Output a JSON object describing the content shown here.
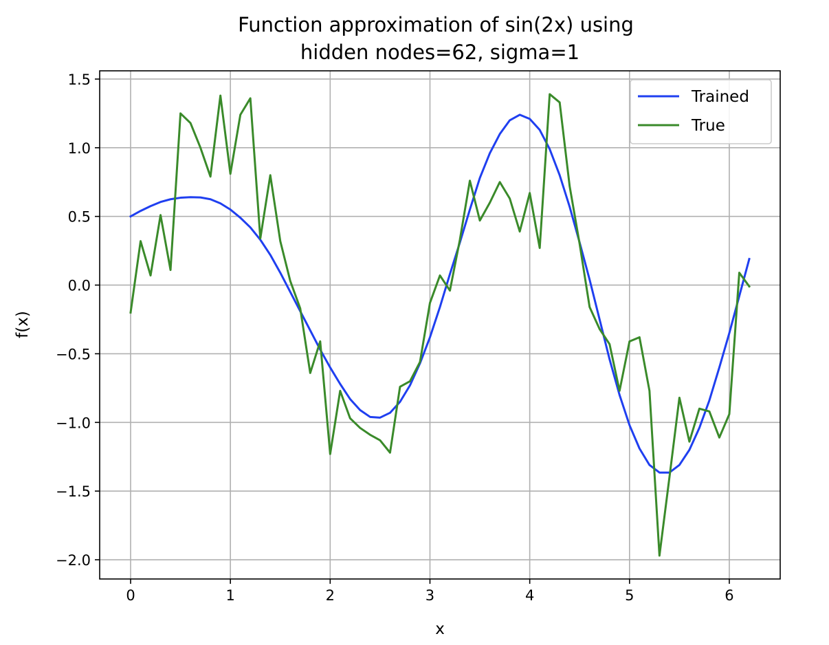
{
  "chart_data": {
    "type": "line",
    "title": "Function approximation of sin(2x) using",
    "subtitle": "hidden nodes=62, sigma=1",
    "xlabel": "x",
    "ylabel": "f(x)",
    "xlim": [
      -0.31,
      6.51
    ],
    "ylim": [
      -2.14,
      1.56
    ],
    "xticks": [
      0,
      1,
      2,
      3,
      4,
      5,
      6
    ],
    "xtick_labels": [
      "0",
      "1",
      "2",
      "3",
      "4",
      "5",
      "6"
    ],
    "yticks": [
      1.5,
      1.0,
      0.5,
      0.0,
      -0.5,
      -1.0,
      -1.5,
      -2.0
    ],
    "ytick_labels": [
      "1.5",
      "1.0",
      "0.5",
      "0.0",
      "−0.5",
      "−1.0",
      "−1.5",
      "−2.0"
    ],
    "grid": true,
    "legend_position": "upper right",
    "x": [
      0.0,
      0.1,
      0.2,
      0.3,
      0.4,
      0.5,
      0.6,
      0.7,
      0.8,
      0.9,
      1.0,
      1.1,
      1.2,
      1.3,
      1.4,
      1.5,
      1.6,
      1.7,
      1.8,
      1.9,
      2.0,
      2.1,
      2.2,
      2.3,
      2.4,
      2.5,
      2.6,
      2.7,
      2.8,
      2.9,
      3.0,
      3.1,
      3.2,
      3.3,
      3.4,
      3.5,
      3.6,
      3.7,
      3.8,
      3.9,
      4.0,
      4.1,
      4.2,
      4.3,
      4.4,
      4.5,
      4.6,
      4.7,
      4.8,
      4.9,
      5.0,
      5.1,
      5.2,
      5.3,
      5.4,
      5.5,
      5.6,
      5.7,
      5.8,
      5.9,
      6.0,
      6.1,
      6.2
    ],
    "series": [
      {
        "name": "Trained",
        "color": "#1f3ff0",
        "values": [
          0.5,
          0.54,
          0.575,
          0.605,
          0.625,
          0.636,
          0.64,
          0.638,
          0.625,
          0.595,
          0.55,
          0.49,
          0.42,
          0.33,
          0.22,
          0.09,
          -0.05,
          -0.19,
          -0.33,
          -0.47,
          -0.6,
          -0.72,
          -0.83,
          -0.91,
          -0.96,
          -0.965,
          -0.93,
          -0.85,
          -0.73,
          -0.57,
          -0.38,
          -0.16,
          0.08,
          0.31,
          0.55,
          0.78,
          0.96,
          1.1,
          1.2,
          1.24,
          1.21,
          1.13,
          0.99,
          0.8,
          0.57,
          0.31,
          0.04,
          -0.25,
          -0.54,
          -0.8,
          -1.02,
          -1.19,
          -1.31,
          -1.365,
          -1.365,
          -1.31,
          -1.2,
          -1.04,
          -0.84,
          -0.6,
          -0.35,
          -0.08,
          0.19
        ]
      },
      {
        "name": "True",
        "color": "#3a8a2a",
        "values": [
          -0.2,
          0.32,
          0.07,
          0.51,
          0.11,
          1.25,
          1.18,
          1.0,
          0.79,
          1.38,
          0.81,
          1.24,
          1.36,
          0.34,
          0.8,
          0.32,
          0.03,
          -0.17,
          -0.64,
          -0.41,
          -1.23,
          -0.77,
          -0.97,
          -1.04,
          -1.09,
          -1.13,
          -1.22,
          -0.74,
          -0.7,
          -0.56,
          -0.13,
          0.07,
          -0.04,
          0.33,
          0.76,
          0.47,
          0.6,
          0.75,
          0.63,
          0.39,
          0.67,
          0.27,
          1.39,
          1.33,
          0.72,
          0.3,
          -0.16,
          -0.32,
          -0.43,
          -0.77,
          -0.41,
          -0.38,
          -0.77,
          -1.97,
          -1.4,
          -0.82,
          -1.14,
          -0.9,
          -0.92,
          -1.11,
          -0.94,
          0.09,
          -0.01
        ]
      }
    ]
  }
}
